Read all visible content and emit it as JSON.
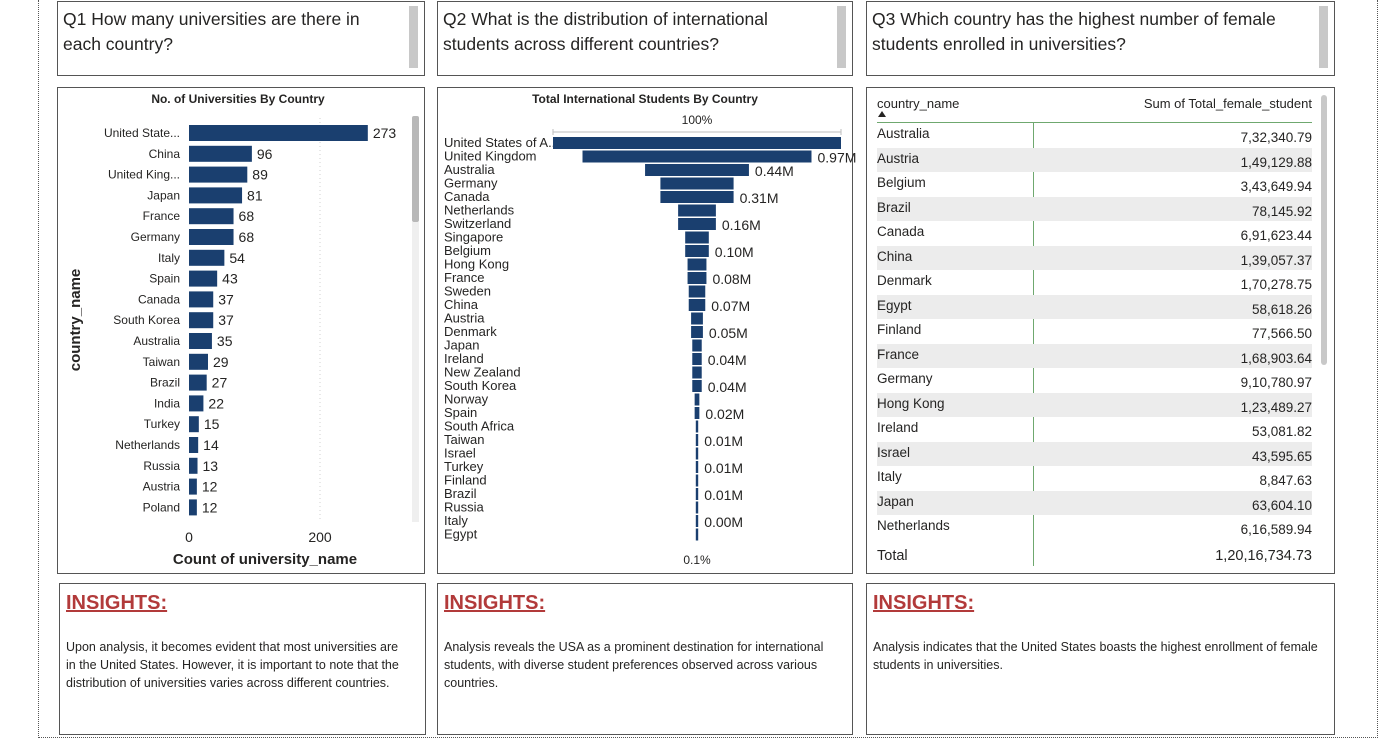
{
  "questions": [
    "Q1 How many universities are there in each country?",
    "Q2 What is the distribution of international students across different countries?",
    "Q3 Which country has the highest number of female students enrolled in universities?"
  ],
  "chart_data": [
    {
      "type": "bar",
      "orientation": "horizontal",
      "title": "No. of Universities By Country",
      "xlabel": "Count of university_name",
      "ylabel": "country_name",
      "xticks": [
        "0",
        "200"
      ],
      "xlim": [
        0,
        300
      ],
      "categories": [
        "United State...",
        "China",
        "United King...",
        "Japan",
        "France",
        "Germany",
        "Italy",
        "Spain",
        "Canada",
        "South Korea",
        "Australia",
        "Taiwan",
        "Brazil",
        "India",
        "Turkey",
        "Netherlands",
        "Russia",
        "Austria",
        "Poland"
      ],
      "values": [
        273,
        96,
        89,
        81,
        68,
        68,
        54,
        43,
        37,
        37,
        35,
        29,
        27,
        22,
        15,
        14,
        13,
        12,
        12
      ],
      "bar_color": "#1a3f6f",
      "grid": true
    },
    {
      "type": "bar",
      "orientation": "funnel",
      "title": "Total International Students By Country",
      "top_label": "100%",
      "bottom_label": "0.1%",
      "categories": [
        "United States of A...",
        "United Kingdom",
        "Australia",
        "Germany",
        "Canada",
        "Netherlands",
        "Switzerland",
        "Singapore",
        "Belgium",
        "Hong Kong",
        "France",
        "Sweden",
        "China",
        "Austria",
        "Denmark",
        "Japan",
        "Ireland",
        "New Zealand",
        "South Korea",
        "Norway",
        "Spain",
        "South Africa",
        "Taiwan",
        "Israel",
        "Turkey",
        "Finland",
        "Brazil",
        "Russia",
        "Italy",
        "Egypt"
      ],
      "values_m": [
        1.22,
        0.97,
        0.44,
        0.31,
        0.31,
        0.16,
        0.16,
        0.1,
        0.1,
        0.08,
        0.08,
        0.07,
        0.07,
        0.05,
        0.05,
        0.04,
        0.04,
        0.04,
        0.04,
        0.02,
        0.02,
        0.01,
        0.01,
        0.01,
        0.01,
        0.01,
        0.01,
        0.0,
        0.0,
        0.0
      ],
      "value_labels": [
        {
          "index": 1,
          "label": "0.97M"
        },
        {
          "index": 2,
          "label": "0.44M"
        },
        {
          "index": 4,
          "label": "0.31M"
        },
        {
          "index": 6,
          "label": "0.16M"
        },
        {
          "index": 8,
          "label": "0.10M"
        },
        {
          "index": 10,
          "label": "0.08M"
        },
        {
          "index": 12,
          "label": "0.07M"
        },
        {
          "index": 14,
          "label": "0.05M"
        },
        {
          "index": 16,
          "label": "0.04M"
        },
        {
          "index": 18,
          "label": "0.04M"
        },
        {
          "index": 20,
          "label": "0.02M"
        },
        {
          "index": 22,
          "label": "0.01M"
        },
        {
          "index": 24,
          "label": "0.01M"
        },
        {
          "index": 26,
          "label": "0.01M"
        },
        {
          "index": 28,
          "label": "0.00M"
        }
      ],
      "bar_color": "#1a3f6f"
    },
    {
      "type": "table",
      "columns": [
        "country_name",
        "Sum of Total_female_student"
      ],
      "rows": [
        [
          "Australia",
          "7,32,340.79"
        ],
        [
          "Austria",
          "1,49,129.88"
        ],
        [
          "Belgium",
          "3,43,649.94"
        ],
        [
          "Brazil",
          "78,145.92"
        ],
        [
          "Canada",
          "6,91,623.44"
        ],
        [
          "China",
          "1,39,057.37"
        ],
        [
          "Denmark",
          "1,70,278.75"
        ],
        [
          "Egypt",
          "58,618.26"
        ],
        [
          "Finland",
          "77,566.50"
        ],
        [
          "France",
          "1,68,903.64"
        ],
        [
          "Germany",
          "9,10,780.97"
        ],
        [
          "Hong Kong",
          "1,23,489.27"
        ],
        [
          "Ireland",
          "53,081.82"
        ],
        [
          "Israel",
          "43,595.65"
        ],
        [
          "Italy",
          "8,847.63"
        ],
        [
          "Japan",
          "63,604.10"
        ],
        [
          "Netherlands",
          "6,16,589.94"
        ]
      ],
      "total_label": "Total",
      "total_value": "1,20,16,734.73",
      "sort": "country_name ascending"
    }
  ],
  "insights": {
    "title": "INSIGHTS:",
    "texts": [
      "Upon analysis, it becomes evident that most universities are in the United States. However, it is important to note that the distribution of universities varies across different countries.",
      "Analysis reveals the USA as a prominent destination for international students, with diverse student preferences observed across various countries.",
      "Analysis indicates that the United States boasts the highest enrollment of female students in universities."
    ],
    "title_color": "#b23a3a"
  }
}
